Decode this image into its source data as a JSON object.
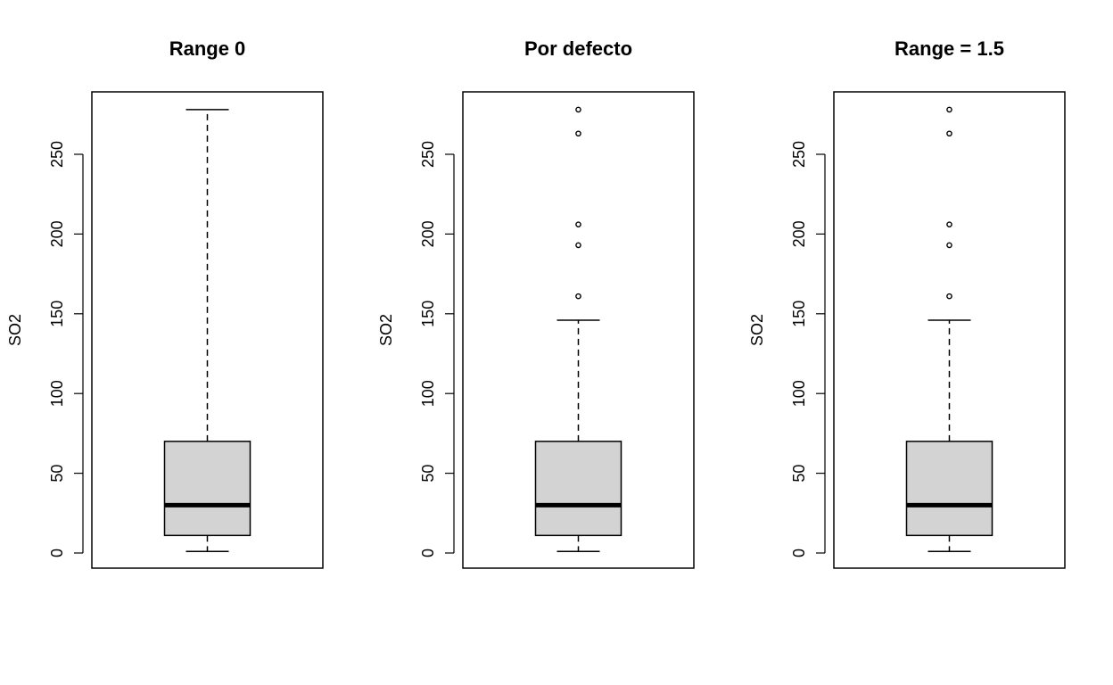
{
  "chart_data": [
    {
      "type": "box",
      "title": "Range 0",
      "xlabel": "",
      "ylabel": "SO2",
      "yticks": [
        0,
        50,
        100,
        150,
        200,
        250
      ],
      "ytick_labels": [
        "0",
        "50",
        "100",
        "150",
        "200",
        "250"
      ],
      "ylim": [
        -10,
        290
      ],
      "box": {
        "min": 1,
        "q1": 11,
        "median": 30,
        "q3": 70,
        "whisker_low": 1,
        "whisker_high": 278
      },
      "outliers": [],
      "box_color": "#d3d3d3"
    },
    {
      "type": "box",
      "title": "Por defecto",
      "xlabel": "",
      "ylabel": "SO2",
      "yticks": [
        0,
        50,
        100,
        150,
        200,
        250
      ],
      "ytick_labels": [
        "0",
        "50",
        "100",
        "150",
        "200",
        "250"
      ],
      "ylim": [
        -10,
        290
      ],
      "box": {
        "min": 1,
        "q1": 11,
        "median": 30,
        "q3": 70,
        "whisker_low": 1,
        "whisker_high": 146
      },
      "outliers": [
        161,
        193,
        206,
        263,
        278
      ],
      "box_color": "#d3d3d3"
    },
    {
      "type": "box",
      "title": "Range = 1.5",
      "xlabel": "",
      "ylabel": "SO2",
      "yticks": [
        0,
        50,
        100,
        150,
        200,
        250
      ],
      "ytick_labels": [
        "0",
        "50",
        "100",
        "150",
        "200",
        "250"
      ],
      "ylim": [
        -10,
        290
      ],
      "box": {
        "min": 1,
        "q1": 11,
        "median": 30,
        "q3": 70,
        "whisker_low": 1,
        "whisker_high": 146
      },
      "outliers": [
        161,
        193,
        206,
        263,
        278
      ],
      "box_color": "#d3d3d3"
    }
  ]
}
